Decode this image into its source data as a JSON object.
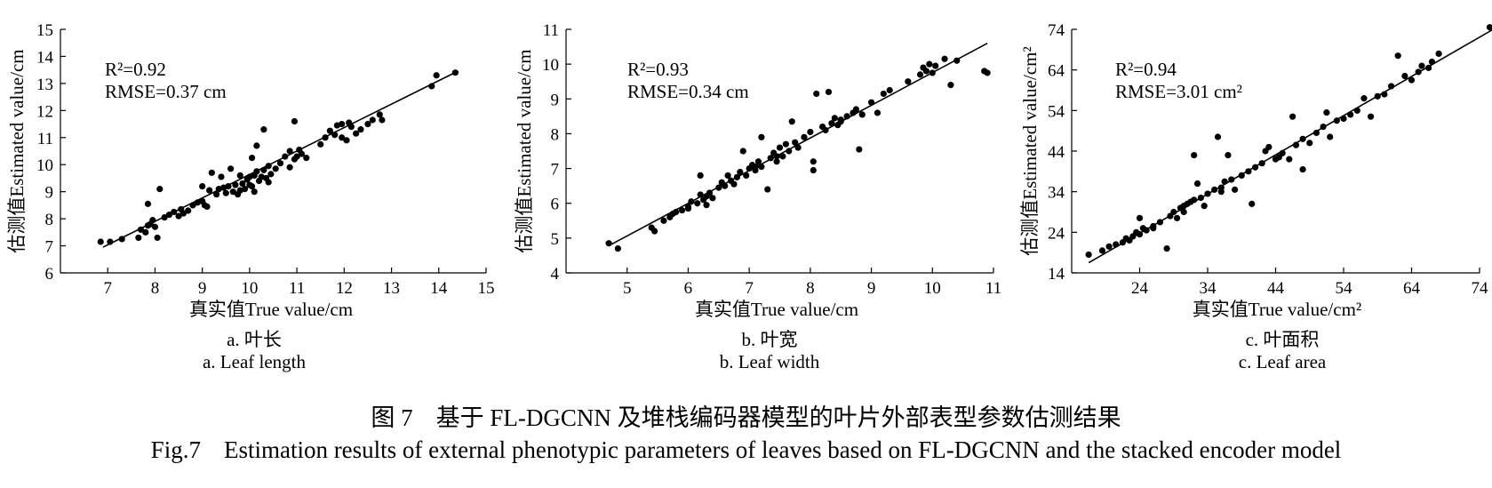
{
  "caption": {
    "cn_number": "图 7",
    "cn_text": "基于 FL-DGCNN 及堆栈编码器模型的叶片外部表型参数估测结果",
    "en_number": "Fig.7",
    "en_text": "Estimation results of external phenotypic parameters of leaves based on FL-DGCNN and the stacked encoder model"
  },
  "chart_data": [
    {
      "type": "scatter",
      "xlabel": "真实值True value/cm",
      "ylabel": "估测值Estimated value/cm",
      "xlim": [
        6,
        15
      ],
      "ylim": [
        6,
        15
      ],
      "xticks": [
        7,
        8,
        9,
        10,
        11,
        12,
        13,
        14,
        15
      ],
      "yticks": [
        6,
        7,
        8,
        9,
        10,
        11,
        12,
        13,
        14,
        15
      ],
      "r2_label": "R²=0.92",
      "rmse_label": "RMSE=0.37 cm",
      "subtitle_cn": "a. 叶长",
      "subtitle_en": "a. Leaf length",
      "fit_line": [
        [
          6.9,
          6.95
        ],
        [
          14.4,
          13.45
        ]
      ],
      "points": [
        [
          6.85,
          7.15
        ],
        [
          7.05,
          7.15
        ],
        [
          7.3,
          7.25
        ],
        [
          7.65,
          7.3
        ],
        [
          7.7,
          7.6
        ],
        [
          7.8,
          7.5
        ],
        [
          7.85,
          7.75
        ],
        [
          7.9,
          7.8
        ],
        [
          7.95,
          7.95
        ],
        [
          8.0,
          7.7
        ],
        [
          8.05,
          7.3
        ],
        [
          7.85,
          8.55
        ],
        [
          8.1,
          9.1
        ],
        [
          8.2,
          8.05
        ],
        [
          8.3,
          8.15
        ],
        [
          8.4,
          8.25
        ],
        [
          8.5,
          8.1
        ],
        [
          8.55,
          8.35
        ],
        [
          8.6,
          8.2
        ],
        [
          8.7,
          8.3
        ],
        [
          8.8,
          8.5
        ],
        [
          8.9,
          8.6
        ],
        [
          9.0,
          8.65
        ],
        [
          9.05,
          8.5
        ],
        [
          9.1,
          8.45
        ],
        [
          9.0,
          9.2
        ],
        [
          9.15,
          9.05
        ],
        [
          9.2,
          9.7
        ],
        [
          9.3,
          8.9
        ],
        [
          9.35,
          9.1
        ],
        [
          9.4,
          9.55
        ],
        [
          9.5,
          8.95
        ],
        [
          9.55,
          9.2
        ],
        [
          9.6,
          9.85
        ],
        [
          9.65,
          9.0
        ],
        [
          9.7,
          9.25
        ],
        [
          9.75,
          8.9
        ],
        [
          9.8,
          9.05
        ],
        [
          9.85,
          9.3
        ],
        [
          9.9,
          9.1
        ],
        [
          9.95,
          9.45
        ],
        [
          10.0,
          9.25
        ],
        [
          10.0,
          9.55
        ],
        [
          10.05,
          9.2
        ],
        [
          10.1,
          9.0
        ],
        [
          10.1,
          9.6
        ],
        [
          10.15,
          9.75
        ],
        [
          10.2,
          9.4
        ],
        [
          10.25,
          9.55
        ],
        [
          10.3,
          9.8
        ],
        [
          10.35,
          9.5
        ],
        [
          10.4,
          9.95
        ],
        [
          10.45,
          9.65
        ],
        [
          10.05,
          10.25
        ],
        [
          10.15,
          10.7
        ],
        [
          10.3,
          11.3
        ],
        [
          10.55,
          9.85
        ],
        [
          10.65,
          10.05
        ],
        [
          10.75,
          10.3
        ],
        [
          10.85,
          10.5
        ],
        [
          10.95,
          10.2
        ],
        [
          11.0,
          10.3
        ],
        [
          11.05,
          10.55
        ],
        [
          10.85,
          9.9
        ],
        [
          10.95,
          11.6
        ],
        [
          11.1,
          10.4
        ],
        [
          11.2,
          10.25
        ],
        [
          11.5,
          10.75
        ],
        [
          11.6,
          11.0
        ],
        [
          11.7,
          11.25
        ],
        [
          11.8,
          11.1
        ],
        [
          11.85,
          11.45
        ],
        [
          11.95,
          11.0
        ],
        [
          12.05,
          10.9
        ],
        [
          12.15,
          11.4
        ],
        [
          12.25,
          11.15
        ],
        [
          12.35,
          11.3
        ],
        [
          12.5,
          11.5
        ],
        [
          12.6,
          11.65
        ],
        [
          12.75,
          11.85
        ],
        [
          12.8,
          11.65
        ],
        [
          13.85,
          12.9
        ],
        [
          13.95,
          13.3
        ],
        [
          14.35,
          13.4
        ],
        [
          12.1,
          11.55
        ],
        [
          11.95,
          11.5
        ],
        [
          9.8,
          9.6
        ],
        [
          9.45,
          9.15
        ],
        [
          10.4,
          9.35
        ]
      ]
    },
    {
      "type": "scatter",
      "xlabel": "真实值True value/cm",
      "ylabel": "估测值Estimated value/cm",
      "xlim": [
        4,
        11
      ],
      "ylim": [
        4,
        11
      ],
      "xticks": [
        5,
        6,
        7,
        8,
        9,
        10,
        11
      ],
      "yticks": [
        4,
        5,
        6,
        7,
        8,
        9,
        10,
        11
      ],
      "r2_label": "R²=0.93",
      "rmse_label": "RMSE=0.34 cm",
      "subtitle_cn": "b. 叶宽",
      "subtitle_en": "b. Leaf width",
      "fit_line": [
        [
          4.7,
          4.78
        ],
        [
          10.9,
          10.6
        ]
      ],
      "points": [
        [
          4.7,
          4.85
        ],
        [
          4.85,
          4.7
        ],
        [
          5.4,
          5.3
        ],
        [
          5.45,
          5.2
        ],
        [
          5.6,
          5.5
        ],
        [
          5.7,
          5.6
        ],
        [
          5.8,
          5.75
        ],
        [
          5.9,
          5.8
        ],
        [
          6.0,
          5.9
        ],
        [
          6.05,
          6.05
        ],
        [
          6.15,
          6.0
        ],
        [
          6.2,
          6.25
        ],
        [
          6.25,
          6.1
        ],
        [
          6.3,
          5.95
        ],
        [
          6.35,
          6.3
        ],
        [
          6.4,
          6.15
        ],
        [
          6.2,
          6.8
        ],
        [
          6.5,
          6.45
        ],
        [
          6.55,
          6.6
        ],
        [
          6.6,
          6.5
        ],
        [
          6.65,
          6.8
        ],
        [
          6.7,
          6.65
        ],
        [
          6.75,
          6.55
        ],
        [
          6.8,
          6.75
        ],
        [
          6.85,
          6.9
        ],
        [
          6.9,
          7.5
        ],
        [
          6.95,
          6.8
        ],
        [
          7.0,
          7.0
        ],
        [
          7.05,
          7.1
        ],
        [
          7.1,
          6.95
        ],
        [
          7.15,
          7.2
        ],
        [
          7.2,
          7.05
        ],
        [
          7.2,
          7.9
        ],
        [
          7.3,
          6.4
        ],
        [
          7.35,
          7.3
        ],
        [
          7.4,
          7.45
        ],
        [
          7.45,
          7.2
        ],
        [
          7.5,
          7.6
        ],
        [
          7.55,
          7.35
        ],
        [
          7.6,
          7.7
        ],
        [
          7.65,
          7.5
        ],
        [
          7.7,
          8.35
        ],
        [
          7.75,
          7.75
        ],
        [
          7.8,
          7.6
        ],
        [
          7.9,
          7.9
        ],
        [
          8.0,
          8.05
        ],
        [
          8.05,
          7.2
        ],
        [
          8.05,
          6.95
        ],
        [
          8.1,
          9.15
        ],
        [
          8.2,
          8.2
        ],
        [
          8.25,
          8.1
        ],
        [
          8.3,
          9.2
        ],
        [
          8.35,
          8.3
        ],
        [
          8.4,
          8.45
        ],
        [
          8.45,
          8.25
        ],
        [
          8.5,
          8.35
        ],
        [
          8.6,
          8.5
        ],
        [
          8.7,
          8.6
        ],
        [
          8.75,
          8.7
        ],
        [
          8.8,
          7.55
        ],
        [
          8.85,
          8.55
        ],
        [
          9.0,
          8.9
        ],
        [
          9.1,
          8.6
        ],
        [
          9.2,
          9.15
        ],
        [
          9.3,
          9.25
        ],
        [
          9.6,
          9.5
        ],
        [
          9.8,
          9.7
        ],
        [
          9.85,
          9.9
        ],
        [
          9.9,
          9.8
        ],
        [
          9.95,
          10.0
        ],
        [
          10.0,
          9.75
        ],
        [
          10.05,
          9.95
        ],
        [
          10.2,
          10.15
        ],
        [
          10.3,
          9.4
        ],
        [
          10.4,
          10.1
        ],
        [
          10.9,
          9.75
        ],
        [
          10.85,
          9.8
        ],
        [
          8.5,
          8.4
        ],
        [
          7.1,
          7.05
        ],
        [
          6.3,
          6.2
        ],
        [
          6.0,
          5.85
        ],
        [
          5.75,
          5.7
        ],
        [
          7.45,
          7.35
        ]
      ]
    },
    {
      "type": "scatter",
      "xlabel": "真实值True value/cm²",
      "ylabel": "估测值Estimated value/cm²",
      "xlim": [
        14,
        74
      ],
      "ylim": [
        14,
        74
      ],
      "xticks": [
        24,
        34,
        44,
        54,
        64,
        74
      ],
      "yticks": [
        14,
        24,
        34,
        44,
        54,
        64,
        74
      ],
      "r2_label": "R²=0.94",
      "rmse_label": "RMSE=3.01 cm²",
      "subtitle_cn": "c. 叶面积",
      "subtitle_en": "c. Leaf area",
      "fit_line": [
        [
          16.5,
          16.5
        ],
        [
          76.0,
          74.0
        ]
      ],
      "points": [
        [
          16.5,
          18.5
        ],
        [
          18.5,
          19.5
        ],
        [
          19.5,
          20.5
        ],
        [
          20.5,
          21.0
        ],
        [
          21.5,
          21.5
        ],
        [
          22.0,
          22.5
        ],
        [
          22.5,
          22.0
        ],
        [
          23.0,
          23.0
        ],
        [
          23.5,
          24.0
        ],
        [
          24.0,
          23.5
        ],
        [
          24.0,
          27.5
        ],
        [
          24.5,
          25.0
        ],
        [
          25.0,
          24.5
        ],
        [
          26.0,
          25.5
        ],
        [
          27.0,
          26.5
        ],
        [
          28.0,
          20.0
        ],
        [
          28.5,
          28.0
        ],
        [
          29.0,
          29.0
        ],
        [
          29.5,
          27.5
        ],
        [
          30.0,
          30.0
        ],
        [
          30.5,
          30.5
        ],
        [
          31.0,
          31.0
        ],
        [
          31.5,
          31.5
        ],
        [
          32.0,
          32.0
        ],
        [
          32.0,
          43.0
        ],
        [
          32.5,
          36.0
        ],
        [
          33.0,
          32.5
        ],
        [
          33.5,
          30.5
        ],
        [
          34.0,
          33.5
        ],
        [
          35.0,
          34.5
        ],
        [
          35.5,
          47.5
        ],
        [
          36.0,
          35.0
        ],
        [
          36.5,
          36.5
        ],
        [
          37.0,
          43.0
        ],
        [
          37.5,
          37.0
        ],
        [
          38.0,
          34.5
        ],
        [
          39.0,
          38.0
        ],
        [
          40.0,
          39.0
        ],
        [
          40.5,
          31.0
        ],
        [
          41.0,
          40.0
        ],
        [
          42.0,
          41.0
        ],
        [
          42.5,
          44.0
        ],
        [
          43.0,
          45.0
        ],
        [
          44.0,
          42.0
        ],
        [
          45.0,
          43.5
        ],
        [
          46.0,
          42.0
        ],
        [
          46.5,
          52.5
        ],
        [
          47.0,
          45.5
        ],
        [
          48.0,
          47.0
        ],
        [
          48.0,
          39.5
        ],
        [
          49.0,
          46.0
        ],
        [
          50.0,
          48.5
        ],
        [
          51.0,
          50.0
        ],
        [
          51.5,
          53.5
        ],
        [
          52.0,
          47.5
        ],
        [
          53.0,
          51.5
        ],
        [
          54.0,
          52.0
        ],
        [
          55.0,
          53.0
        ],
        [
          56.0,
          54.0
        ],
        [
          57.0,
          57.0
        ],
        [
          58.0,
          52.5
        ],
        [
          59.0,
          57.5
        ],
        [
          60.0,
          58.0
        ],
        [
          61.0,
          60.0
        ],
        [
          62.0,
          67.5
        ],
        [
          63.0,
          62.5
        ],
        [
          64.0,
          61.5
        ],
        [
          65.0,
          63.5
        ],
        [
          65.5,
          65.0
        ],
        [
          66.5,
          64.5
        ],
        [
          67.0,
          66.0
        ],
        [
          68.0,
          68.0
        ],
        [
          75.5,
          74.5
        ],
        [
          44.5,
          42.5
        ],
        [
          36.0,
          34.0
        ],
        [
          30.5,
          29.0
        ],
        [
          26.0,
          25.0
        ]
      ]
    }
  ]
}
